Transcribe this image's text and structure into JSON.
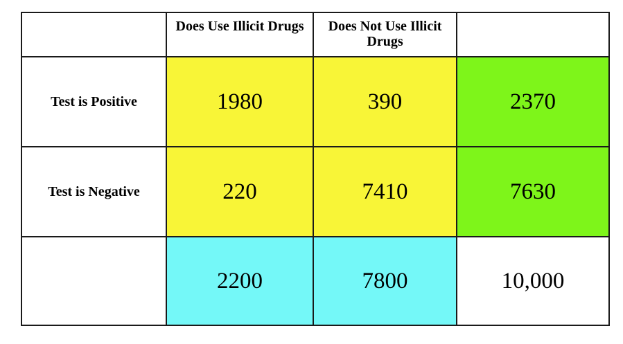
{
  "columns": {
    "col1": "",
    "col2": "Does Use Illicit Drugs",
    "col3": "Does Not Use Illicit Drugs",
    "col4": ""
  },
  "rows": [
    {
      "label": "Test is Positive",
      "uses": "1980",
      "not_uses": "390",
      "total": "2370"
    },
    {
      "label": "Test is Negative",
      "uses": "220",
      "not_uses": "7410",
      "total": "7630"
    },
    {
      "label": "",
      "uses": "2200",
      "not_uses": "7800",
      "total": "10,000"
    }
  ],
  "colors": {
    "joint_cells": "#f8f537",
    "row_totals": "#7ef51a",
    "column_totals": "#74f8f8",
    "grand_total": "#ffffff"
  }
}
